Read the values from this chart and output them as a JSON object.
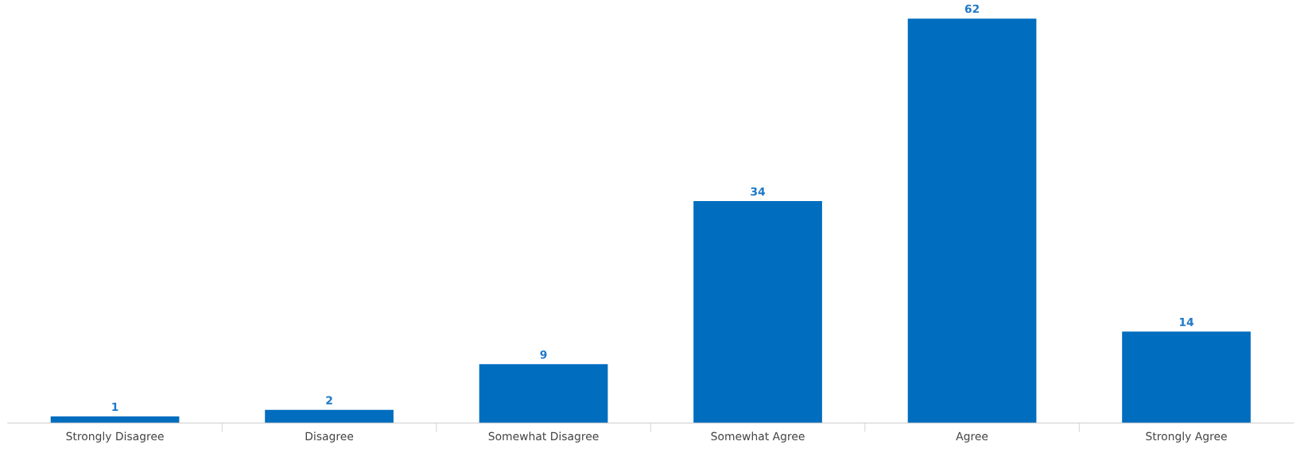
{
  "chart_data": {
    "type": "bar",
    "categories": [
      "Strongly Disagree",
      "Disagree",
      "Somewhat Disagree",
      "Somewhat Agree",
      "Agree",
      "Strongly Agree"
    ],
    "values": [
      1,
      2,
      9,
      34,
      62,
      14
    ],
    "color": "#006dbf",
    "ylim": [
      0,
      62
    ],
    "tick_labels": "x",
    "data_labels": true
  }
}
